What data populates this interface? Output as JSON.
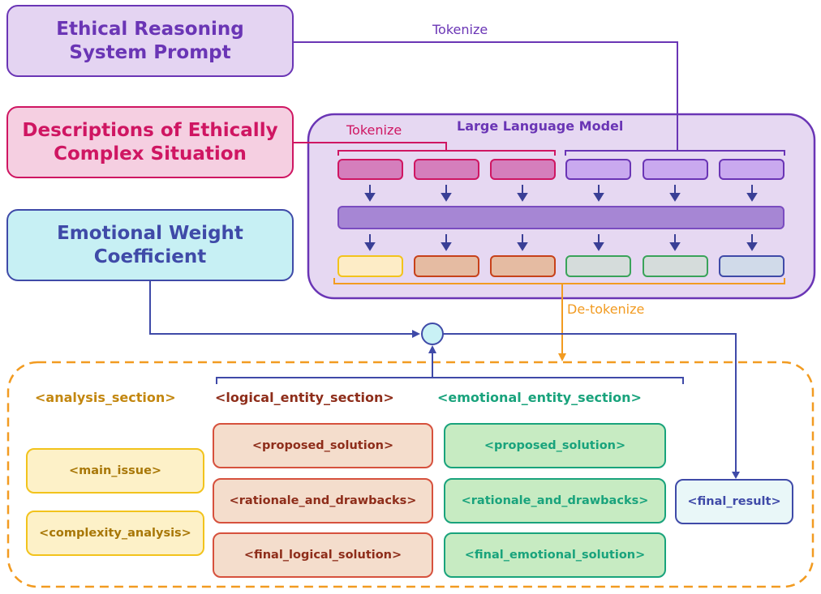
{
  "inputs": {
    "system_prompt": "Ethical Reasoning System Prompt",
    "situation": "Descriptions of Ethically Complex Situation",
    "emotional_weight": "Emotional Weight Coefficient"
  },
  "flow_labels": {
    "tokenize_top": "Tokenize",
    "tokenize_mid": "Tokenize",
    "detokenize": "De-tokenize"
  },
  "llm": {
    "title": "Large Language Model"
  },
  "output": {
    "section_heads": {
      "analysis": "<analysis_section>",
      "logical": "<logical_entity_section>",
      "emotional": "<emotional_entity_section>"
    },
    "analysis": {
      "main_issue": "<main_issue>",
      "complexity_analysis": "<complexity_analysis>"
    },
    "logical": {
      "proposed_solution": "<proposed_solution>",
      "rationale": "<rationale_and_drawbacks>",
      "final": "<final_logical_solution>"
    },
    "emotional": {
      "proposed_solution": "<proposed_solution>",
      "rationale": "<rationale_and_drawbacks>",
      "final": "<final_emotional_solution>"
    },
    "final_result": "<final_result>"
  },
  "colors": {
    "purple": "#6a35b5",
    "magenta": "#cf1662",
    "blue": "#3f4aa8",
    "orange": "#f29b21",
    "gold": "#c38710",
    "brown": "#8e2d1a",
    "green": "#19a37c"
  }
}
